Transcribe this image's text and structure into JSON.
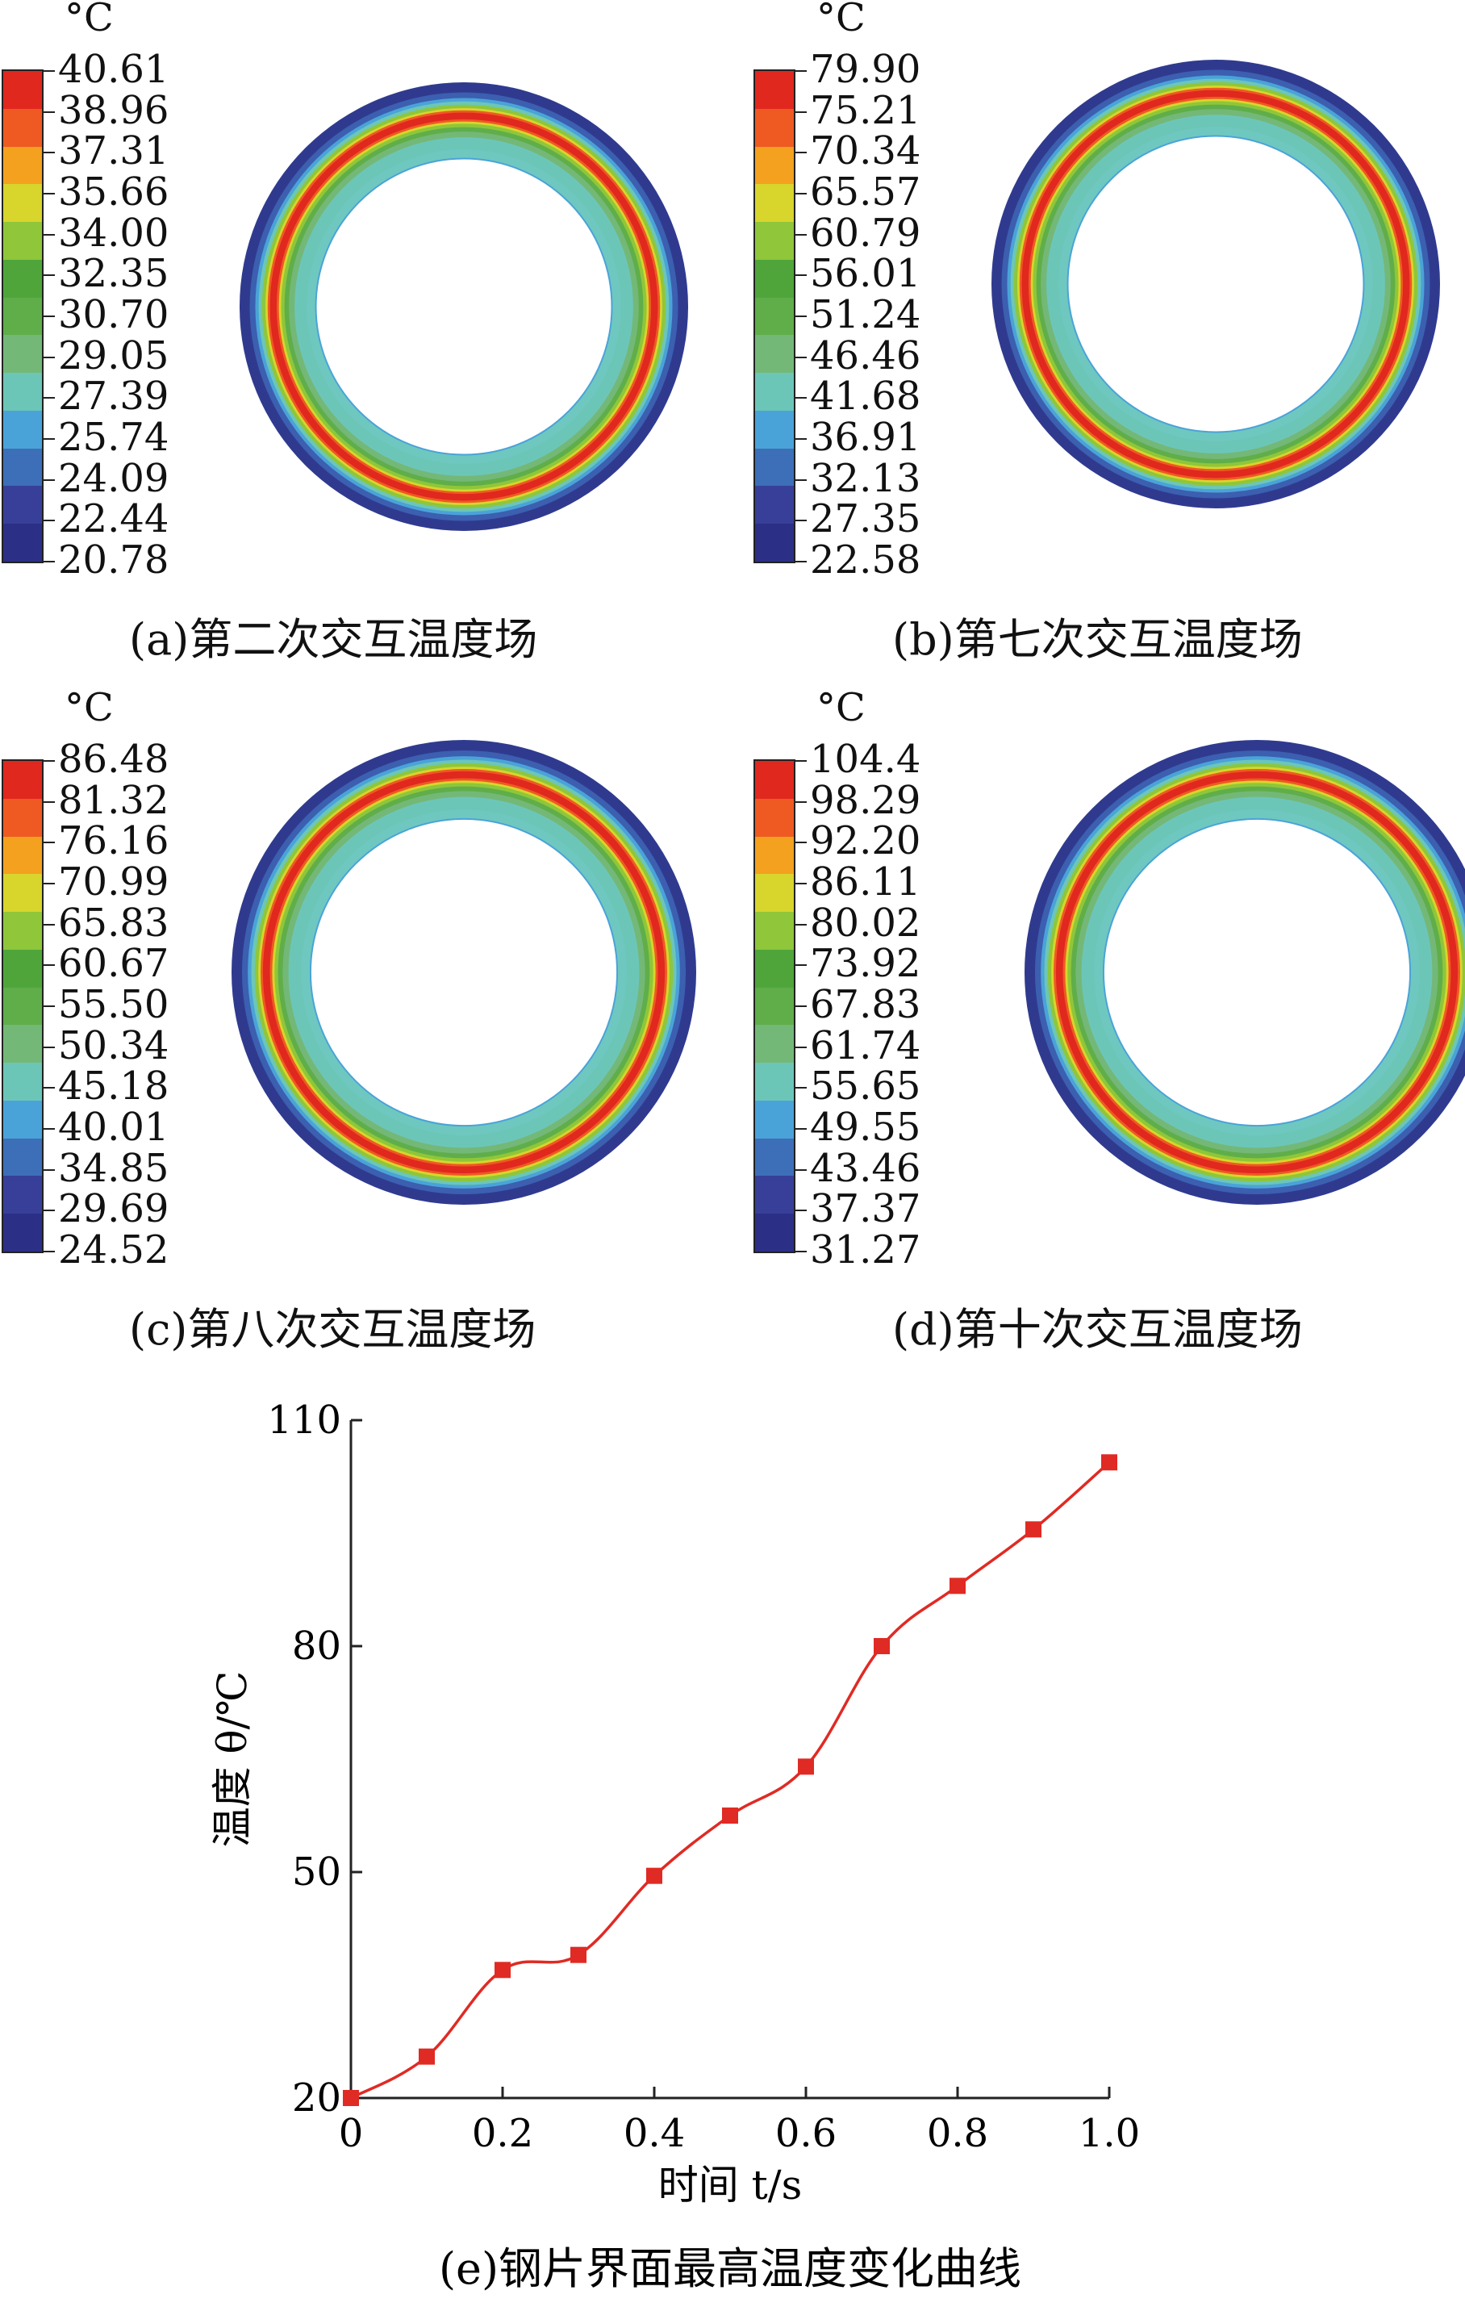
{
  "panels": [
    {
      "unit": "°C",
      "caption": "(a)第二次交互温度场",
      "ticks": [
        "40.61",
        "38.96",
        "37.31",
        "35.66",
        "34.00",
        "32.35",
        "30.70",
        "29.05",
        "27.39",
        "25.74",
        "24.09",
        "22.44",
        "20.78"
      ]
    },
    {
      "unit": "°C",
      "caption": "(b)第七次交互温度场",
      "ticks": [
        "79.90",
        "75.21",
        "70.34",
        "65.57",
        "60.79",
        "56.01",
        "51.24",
        "46.46",
        "41.68",
        "36.91",
        "32.13",
        "27.35",
        "22.58"
      ]
    },
    {
      "unit": "°C",
      "caption": "(c)第八次交互温度场",
      "ticks": [
        "86.48",
        "81.32",
        "76.16",
        "70.99",
        "65.83",
        "60.67",
        "55.50",
        "50.34",
        "45.18",
        "40.01",
        "34.85",
        "29.69",
        "24.52"
      ]
    },
    {
      "unit": "°C",
      "caption": "(d)第十次交互温度场",
      "ticks": [
        "104.4",
        "98.29",
        "92.20",
        "86.11",
        "80.02",
        "73.92",
        "67.83",
        "61.74",
        "55.65",
        "49.55",
        "43.46",
        "37.37",
        "31.27"
      ]
    }
  ],
  "colors": {
    "scale": [
      "#e0281f",
      "#ee5a22",
      "#f4a11f",
      "#d8d52c",
      "#8fc63a",
      "#4fa53a",
      "#5fae4a",
      "#74b878",
      "#6cc6b8",
      "#4aa3d8",
      "#3d6fb8",
      "#383f98",
      "#2b2f86"
    ],
    "line": "#e02a24"
  },
  "chart_data": {
    "type": "line",
    "x": [
      0,
      0.1,
      0.2,
      0.3,
      0.4,
      0.5,
      0.6,
      0.7,
      0.8,
      0.9,
      1.0
    ],
    "y": [
      20,
      25.5,
      37,
      39,
      49.5,
      57.5,
      64,
      80,
      88,
      95.5,
      104.4
    ],
    "xlabel": "时间 t/s",
    "ylabel": "温度 θ/℃",
    "xticks": [
      "0",
      "0.2",
      "0.4",
      "0.6",
      "0.8",
      "1.0"
    ],
    "yticks": [
      "20",
      "50",
      "80",
      "110"
    ],
    "xlim": [
      0,
      1.0
    ],
    "ylim": [
      20,
      110
    ],
    "caption": "(e)钢片界面最高温度变化曲线"
  }
}
